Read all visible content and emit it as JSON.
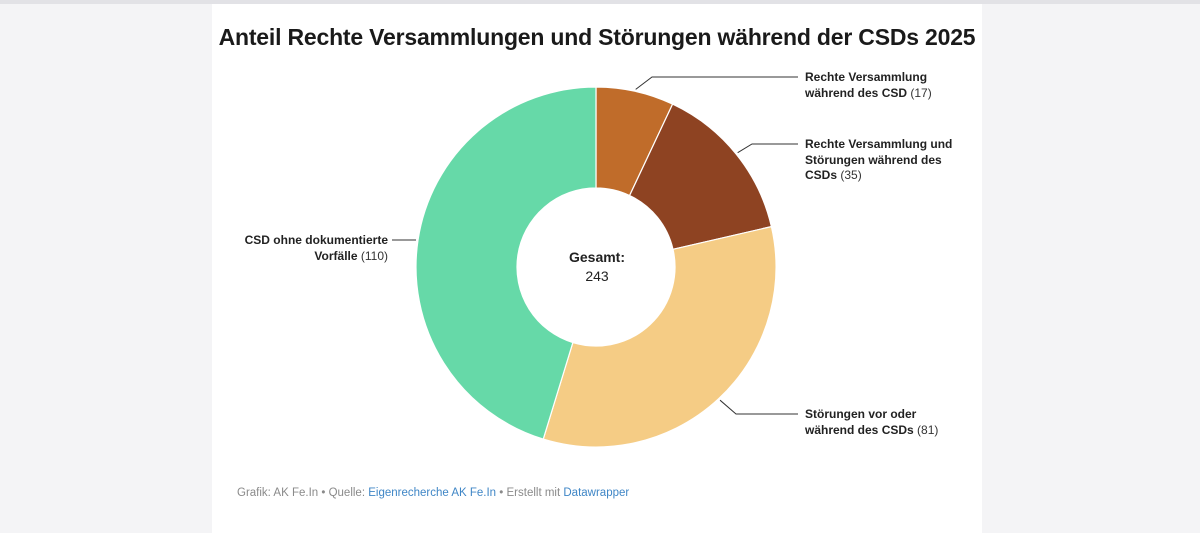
{
  "chart_data": {
    "type": "pie",
    "title": "Anteil Rechte Versammlungen und Störungen während der CSDs 2025",
    "center_label": "Gesamt:",
    "total": 243,
    "slices": [
      {
        "label": "Rechte Versammlung während des CSD",
        "value": 17,
        "color": "#c06c2a"
      },
      {
        "label": "Rechte Versammlung und Störungen während des CSDs",
        "value": 35,
        "color": "#8e4322"
      },
      {
        "label": "Störungen vor oder während des CSDs",
        "value": 81,
        "color": "#f5cc85"
      },
      {
        "label": "CSD ohne dokumentierte Vorfälle",
        "value": 110,
        "color": "#66d9a8"
      }
    ]
  },
  "labels": [
    {
      "name_lines": [
        "Rechte Versammlung",
        "während des CSD"
      ],
      "value_text": "(17)"
    },
    {
      "name_lines": [
        "Rechte Versammlung und",
        "Störungen während des",
        "CSDs"
      ],
      "value_text": "(35)"
    },
    {
      "name_lines": [
        "Störungen vor oder",
        "während des CSDs"
      ],
      "value_text": "(81)"
    },
    {
      "name_lines": [
        "CSD ohne dokumentierte",
        "Vorfälle"
      ],
      "value_text": "(110)"
    }
  ],
  "footer": {
    "prefix": "Grafik: AK Fe.In • Quelle: ",
    "source_link": "Eigenrecherche AK Fe.In",
    "middle": " • Erstellt mit ",
    "tool_link": "Datawrapper"
  }
}
